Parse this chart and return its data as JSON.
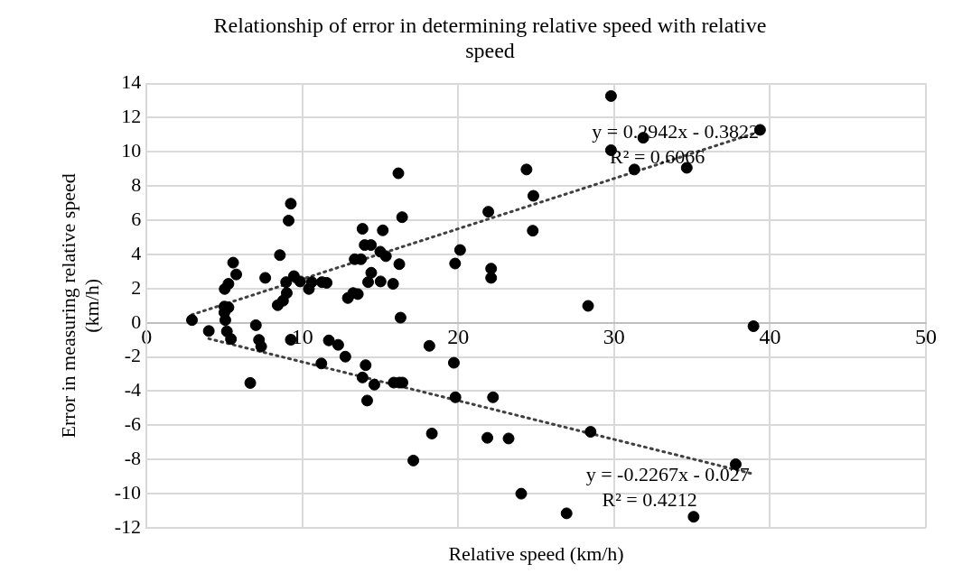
{
  "chart_data": {
    "type": "scatter",
    "title": "Relationship of error in determining relative speed with relative speed",
    "xlabel": "Relative speed (km/h)",
    "ylabel": "Error in measuring relative speed (km/h)",
    "xlim": [
      0,
      50
    ],
    "xticks": [
      0,
      10,
      20,
      30,
      40,
      50
    ],
    "ylim": [
      -12,
      14
    ],
    "yticks": [
      -12,
      -10,
      -8,
      -6,
      -4,
      -2,
      0,
      2,
      4,
      6,
      8,
      10,
      12,
      14
    ],
    "grid": true,
    "legend": false,
    "marker": "circle",
    "series": [
      {
        "color": "#000000",
        "x": [
          2.92,
          4.0,
          5.0,
          5.06,
          5.16,
          5.42,
          5.26,
          5.02,
          5.26,
          5.56,
          5.76,
          5.0,
          7.02,
          7.22,
          7.36,
          6.66,
          7.62,
          8.56,
          8.42,
          8.76,
          9.0,
          8.96,
          9.26,
          9.12,
          9.26,
          9.46,
          9.86,
          10.42,
          10.6,
          11.26,
          11.56,
          11.22,
          11.7,
          12.3,
          12.76,
          12.92,
          13.26,
          13.56,
          13.36,
          13.76,
          13.86,
          14.0,
          14.4,
          14.42,
          14.22,
          14.06,
          13.86,
          14.16,
          14.62,
          15.16,
          15.0,
          15.36,
          15.02,
          15.82,
          16.22,
          16.16,
          16.4,
          16.3,
          15.86,
          16.22,
          16.42,
          17.12,
          18.15,
          19.72,
          19.8,
          20.12,
          19.82,
          18.31,
          21.93,
          22.11,
          22.11,
          22.23,
          21.87,
          23.23,
          24.38,
          24.82,
          24.78,
          24.04,
          26.95,
          28.33,
          28.49,
          29.8,
          29.8,
          31.87,
          31.3,
          39.36,
          34.66,
          38.94,
          37.8,
          35.1
        ],
        "values": [
          0.16,
          -0.48,
          0.95,
          0.16,
          -0.5,
          -0.95,
          0.9,
          1.98,
          2.28,
          3.52,
          2.83,
          0.6,
          -0.14,
          -1.0,
          -1.39,
          -3.52,
          2.63,
          3.96,
          1.03,
          1.29,
          1.74,
          2.38,
          6.97,
          5.98,
          -0.99,
          2.73,
          2.42,
          1.98,
          2.38,
          2.38,
          2.34,
          -2.38,
          -1.03,
          -1.29,
          -1.98,
          1.45,
          1.74,
          1.68,
          3.72,
          3.72,
          5.5,
          4.55,
          4.55,
          2.93,
          2.38,
          -2.48,
          -3.2,
          -4.55,
          -3.62,
          5.41,
          4.16,
          3.9,
          2.42,
          2.28,
          3.43,
          8.75,
          6.18,
          0.3,
          -3.5,
          -3.5,
          -3.5,
          -8.06,
          -1.35,
          -2.34,
          3.47,
          4.26,
          -4.36,
          -6.48,
          6.5,
          3.17,
          2.63,
          -4.36,
          -6.73,
          -6.77,
          8.97,
          7.43,
          5.39,
          -10.0,
          -11.15,
          0.99,
          -6.38,
          13.27,
          10.1,
          10.83,
          8.97,
          11.29,
          9.07,
          -0.2,
          -8.28,
          -11.35
        ]
      },
      {
        "type": "line",
        "marker": "none",
        "color": "#404040",
        "line_style": "dotted",
        "x": [
          2.9,
          39.4
        ],
        "values": [
          0.47,
          11.21
        ]
      },
      {
        "type": "line",
        "marker": "none",
        "color": "#404040",
        "line_style": "dotted",
        "x": [
          4.0,
          38.8
        ],
        "values": [
          -0.93,
          -8.82
        ]
      }
    ],
    "annotations": [
      "y = 0.2942x - 0.3822",
      "R² = 0.6066",
      "y = -0.2267x - 0.027",
      "R² = 0.4212"
    ]
  }
}
